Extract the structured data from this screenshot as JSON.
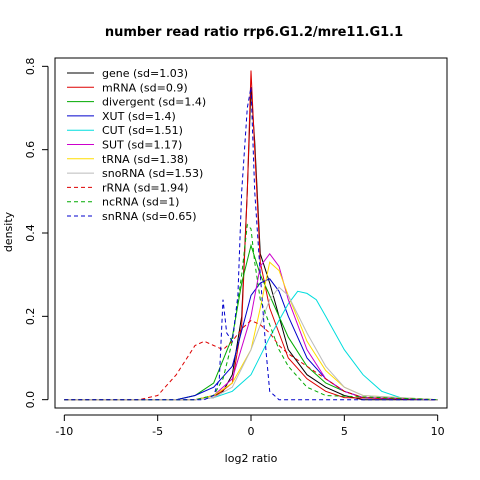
{
  "chart_data": {
    "type": "line",
    "title": "number read ratio rrp6.G1.2/mre11.G1.1",
    "xlabel": "log2 ratio",
    "ylabel": "density",
    "xlim": [
      -10.5,
      10.5
    ],
    "ylim": [
      -0.02,
      0.82
    ],
    "xticks": [
      -10,
      -5,
      0,
      5,
      10
    ],
    "yticks": [
      0.0,
      0.2,
      0.4,
      0.6,
      0.8
    ],
    "xtick_labels": [
      "-10",
      "-5",
      "0",
      "5",
      "10"
    ],
    "ytick_labels": [
      "0.0",
      "0.2",
      "0.4",
      "0.6",
      "0.8"
    ],
    "legend_position": "top-left",
    "grid": false,
    "series": [
      {
        "name": "gene (sd=1.03)",
        "color": "#000000",
        "dash": "solid",
        "x": [
          -10,
          -3,
          -2,
          -1.5,
          -1,
          -0.5,
          -0.2,
          0,
          0.2,
          0.5,
          1,
          1.5,
          2,
          3,
          4,
          5,
          6,
          10
        ],
        "y": [
          0,
          0,
          0.01,
          0.02,
          0.06,
          0.2,
          0.5,
          0.75,
          0.62,
          0.35,
          0.28,
          0.2,
          0.12,
          0.06,
          0.03,
          0.01,
          0,
          0
        ]
      },
      {
        "name": "mRNA (sd=0.9)",
        "color": "#dd0000",
        "dash": "solid",
        "x": [
          -10,
          -3,
          -2,
          -1,
          -0.5,
          -0.2,
          0,
          0.2,
          0.5,
          1,
          1.5,
          2,
          3,
          4,
          5,
          10
        ],
        "y": [
          0,
          0,
          0.005,
          0.04,
          0.18,
          0.5,
          0.79,
          0.6,
          0.33,
          0.22,
          0.16,
          0.1,
          0.05,
          0.02,
          0.005,
          0
        ]
      },
      {
        "name": "divergent (sd=1.4)",
        "color": "#00aa00",
        "dash": "solid",
        "x": [
          -10,
          -4,
          -3,
          -2,
          -1,
          -0.5,
          0,
          0.5,
          1,
          2,
          3,
          4,
          5,
          6,
          10
        ],
        "y": [
          0,
          0,
          0.01,
          0.04,
          0.15,
          0.28,
          0.37,
          0.3,
          0.25,
          0.15,
          0.08,
          0.04,
          0.02,
          0.005,
          0
        ]
      },
      {
        "name": "XUT (sd=1.4)",
        "color": "#0000cc",
        "dash": "solid",
        "x": [
          -10,
          -4,
          -3,
          -2,
          -1,
          0,
          0.5,
          1,
          1.5,
          2,
          3,
          4,
          5,
          6,
          10
        ],
        "y": [
          0,
          0,
          0.01,
          0.03,
          0.08,
          0.25,
          0.28,
          0.29,
          0.26,
          0.2,
          0.1,
          0.05,
          0.02,
          0.005,
          0
        ]
      },
      {
        "name": "CUT (sd=1.51)",
        "color": "#00dddd",
        "dash": "solid",
        "x": [
          -10,
          -3,
          -2,
          -1,
          0,
          1,
          2,
          2.5,
          3,
          3.5,
          4,
          5,
          6,
          7,
          8,
          10
        ],
        "y": [
          0,
          0,
          0.005,
          0.02,
          0.06,
          0.15,
          0.23,
          0.26,
          0.255,
          0.24,
          0.2,
          0.12,
          0.06,
          0.02,
          0.005,
          0
        ]
      },
      {
        "name": "SUT (sd=1.17)",
        "color": "#cc00cc",
        "dash": "solid",
        "x": [
          -10,
          -3,
          -2,
          -1,
          0,
          0.5,
          1,
          1.5,
          2,
          3,
          4,
          5,
          6,
          10
        ],
        "y": [
          0,
          0,
          0.01,
          0.05,
          0.2,
          0.32,
          0.35,
          0.32,
          0.24,
          0.12,
          0.05,
          0.02,
          0.005,
          0
        ]
      },
      {
        "name": "tRNA (sd=1.38)",
        "color": "#ffdd00",
        "dash": "solid",
        "x": [
          -10,
          -3,
          -2,
          -1,
          0,
          0.5,
          1,
          1.5,
          2,
          3,
          4,
          5,
          6,
          10
        ],
        "y": [
          0,
          0,
          0.01,
          0.04,
          0.12,
          0.22,
          0.33,
          0.31,
          0.25,
          0.14,
          0.07,
          0.03,
          0.01,
          0
        ]
      },
      {
        "name": "snoRNA (sd=1.53)",
        "color": "#bbbbbb",
        "dash": "solid",
        "x": [
          -10,
          -3,
          -2,
          -1,
          0,
          1,
          1.5,
          2,
          3,
          4,
          5,
          6,
          10
        ],
        "y": [
          0,
          0,
          0.005,
          0.03,
          0.12,
          0.24,
          0.27,
          0.25,
          0.16,
          0.08,
          0.03,
          0.01,
          0
        ]
      },
      {
        "name": "rRNA (sd=1.94)",
        "color": "#dd0000",
        "dash": "dashed",
        "x": [
          -10,
          -6,
          -5,
          -4,
          -3,
          -2.5,
          -2,
          -1.5,
          -1,
          -0.5,
          0,
          0.5,
          1,
          1.5,
          2,
          3,
          4,
          5,
          6,
          10
        ],
        "y": [
          0,
          0,
          0.01,
          0.06,
          0.13,
          0.14,
          0.13,
          0.12,
          0.14,
          0.17,
          0.19,
          0.18,
          0.16,
          0.13,
          0.11,
          0.08,
          0.05,
          0.02,
          0.005,
          0
        ]
      },
      {
        "name": "ncRNA (sd=1)",
        "color": "#00aa00",
        "dash": "dashed",
        "x": [
          -10,
          -3,
          -2,
          -1.5,
          -1,
          -0.5,
          -0.2,
          0,
          0.2,
          0.5,
          1,
          1.5,
          2,
          3,
          4,
          10
        ],
        "y": [
          0,
          0,
          0.01,
          0.05,
          0.14,
          0.3,
          0.42,
          0.41,
          0.33,
          0.24,
          0.18,
          0.12,
          0.08,
          0.03,
          0.01,
          0
        ]
      },
      {
        "name": "snRNA (sd=0.65)",
        "color": "#0000cc",
        "dash": "dashed",
        "x": [
          -10,
          -2.5,
          -2,
          -1.7,
          -1.5,
          -1.3,
          -1,
          -0.7,
          -0.5,
          -0.2,
          0,
          0.2,
          0.5,
          0.8,
          1,
          1.5,
          10
        ],
        "y": [
          0,
          0,
          0.01,
          0.05,
          0.24,
          0.16,
          0.14,
          0.25,
          0.5,
          0.7,
          0.75,
          0.5,
          0.3,
          0.12,
          0.02,
          0,
          0
        ]
      }
    ]
  }
}
